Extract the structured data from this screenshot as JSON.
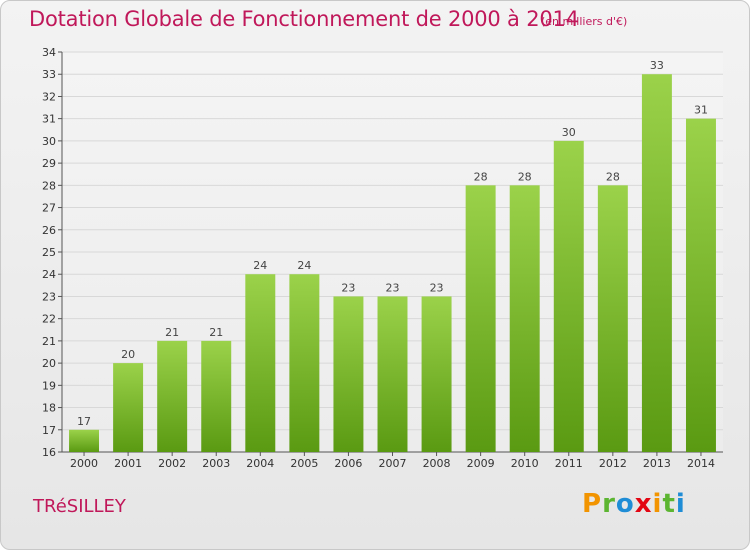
{
  "title": "Dotation Globale de Fonctionnement de 2000 à 2014",
  "subtitle": "(en milliers d'€)",
  "town": "TRéSILLEY",
  "logo": {
    "letters": [
      "P",
      "r",
      "o",
      "x",
      "i",
      "t",
      "i"
    ],
    "colors": [
      "#f29400",
      "#5cb531",
      "#1f8dd6",
      "#e30613",
      "#f29400",
      "#5cb531",
      "#1f8dd6"
    ]
  },
  "colors": {
    "title": "#c0185a",
    "bar_top": "#9bd24a",
    "bar_bottom": "#5a9a12",
    "grid": "#d8d8d8"
  },
  "chart_data": {
    "type": "bar",
    "title": "Dotation Globale de Fonctionnement de 2000 à 2014",
    "subtitle": "(en milliers d'€)",
    "categories": [
      "2000",
      "2001",
      "2002",
      "2003",
      "2004",
      "2005",
      "2006",
      "2007",
      "2008",
      "2009",
      "2010",
      "2011",
      "2012",
      "2013",
      "2014"
    ],
    "values": [
      17,
      20,
      21,
      21,
      24,
      24,
      23,
      23,
      23,
      28,
      28,
      30,
      28,
      33,
      31
    ],
    "yticks": [
      16,
      17,
      18,
      19,
      20,
      21,
      22,
      23,
      24,
      25,
      26,
      27,
      28,
      29,
      30,
      31,
      32,
      33,
      34
    ],
    "ylim": [
      16,
      34
    ],
    "xlabel": "",
    "ylabel": "",
    "grid": true
  }
}
